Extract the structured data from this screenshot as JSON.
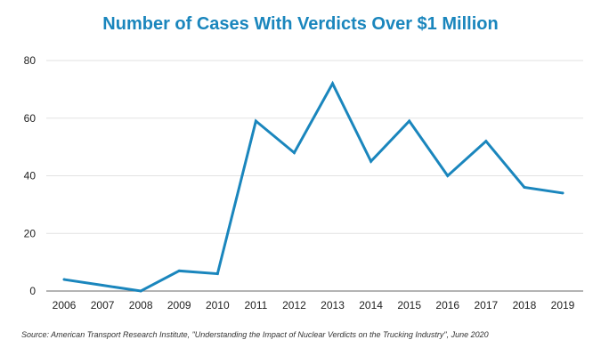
{
  "chart_data": {
    "type": "line",
    "title": "Number of Cases With Verdicts Over $1 Million",
    "xlabel": "",
    "ylabel": "",
    "categories": [
      "2006",
      "2007",
      "2008",
      "2009",
      "2010",
      "2011",
      "2012",
      "2013",
      "2014",
      "2015",
      "2016",
      "2017",
      "2018",
      "2019"
    ],
    "series": [
      {
        "name": "Cases",
        "values": [
          4,
          2,
          0,
          7,
          6,
          59,
          48,
          72,
          45,
          59,
          40,
          52,
          36,
          34
        ],
        "color": "#1a86bd"
      }
    ],
    "ylim": [
      0,
      80
    ],
    "yticks": [
      "0",
      "20",
      "40",
      "60",
      "80"
    ],
    "grid": true,
    "legend": "none",
    "source": "Source: American Transport Research Institute, \"Understanding the Impact of Nuclear Verdicts on the Trucking Industry\", June 2020"
  }
}
